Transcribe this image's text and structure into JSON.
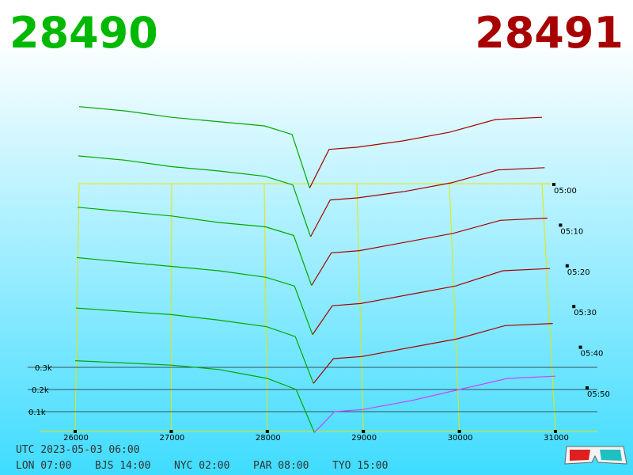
{
  "chart_data": {
    "type": "depth3d",
    "best_bid": 28490,
    "best_ask": 28491,
    "bid_color": "#00a800",
    "ask_color": "#a80000",
    "front_ask_color": "#cc44ff",
    "grid_color": "#e6e600",
    "xlim": [
      26000,
      31000
    ],
    "xticks": [
      26000,
      27000,
      28000,
      29000,
      30000,
      31000
    ],
    "ylim": [
      0,
      400
    ],
    "yticks": [
      {
        "value": 100,
        "label": "0.1k"
      },
      {
        "value": 200,
        "label": "0.2k"
      },
      {
        "value": 300,
        "label": "0.3k"
      }
    ],
    "times": [
      "05:00",
      "05:10",
      "05:20",
      "05:30",
      "05:40",
      "05:50"
    ],
    "bid_prices": [
      26000,
      26500,
      27000,
      27500,
      28000,
      28300,
      28490
    ],
    "ask_prices": [
      28491,
      28700,
      29000,
      29500,
      30000,
      30500,
      31000
    ],
    "snapshots": [
      {
        "bids": [
          390,
          370,
          340,
          320,
          300,
          260,
          10
        ],
        "asks": [
          10,
          190,
          200,
          230,
          270,
          330,
          340
        ]
      },
      {
        "bids": [
          385,
          365,
          335,
          315,
          290,
          250,
          10
        ],
        "asks": [
          10,
          180,
          190,
          220,
          260,
          320,
          330
        ]
      },
      {
        "bids": [
          370,
          350,
          330,
          300,
          280,
          240,
          10
        ],
        "asks": [
          10,
          160,
          170,
          210,
          250,
          310,
          320
        ]
      },
      {
        "bids": [
          360,
          340,
          320,
          300,
          270,
          230,
          8
        ],
        "asks": [
          8,
          140,
          150,
          190,
          230,
          300,
          310
        ]
      },
      {
        "bids": [
          350,
          335,
          320,
          295,
          265,
          220,
          8
        ],
        "asks": [
          8,
          120,
          130,
          170,
          210,
          270,
          280
        ]
      },
      {
        "bids": [
          330,
          320,
          310,
          290,
          250,
          200,
          6
        ],
        "asks": [
          6,
          100,
          110,
          150,
          200,
          250,
          260
        ]
      }
    ],
    "footer": {
      "utc": "UTC 2023-05-03 06:00",
      "cities": [
        "LON 07:00",
        "BJS 14:00",
        "NYC 02:00",
        "PAR 08:00",
        "TYO 15:00"
      ]
    }
  }
}
